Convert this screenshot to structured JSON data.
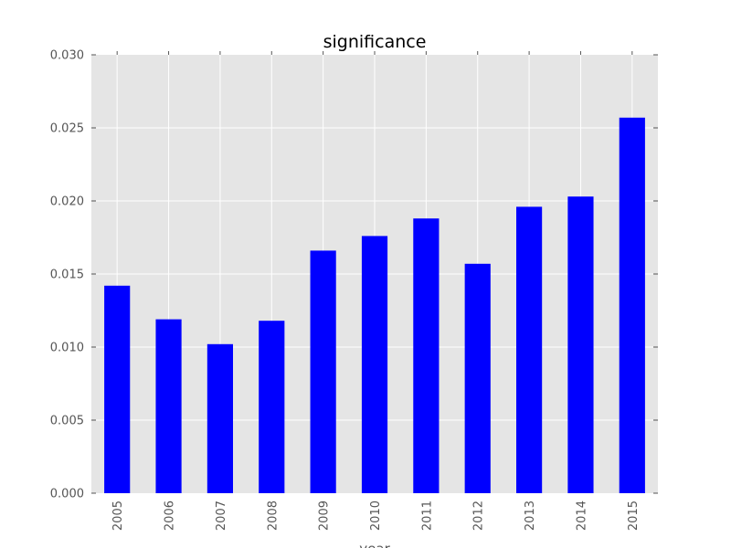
{
  "chart_data": {
    "type": "bar",
    "title": "significance",
    "xlabel": "year",
    "ylabel": "",
    "categories": [
      "2005",
      "2006",
      "2007",
      "2008",
      "2009",
      "2010",
      "2011",
      "2012",
      "2013",
      "2014",
      "2015"
    ],
    "values": [
      0.0142,
      0.0119,
      0.0102,
      0.0118,
      0.0166,
      0.0176,
      0.0188,
      0.0157,
      0.0196,
      0.0203,
      0.0257
    ],
    "ylim": [
      0,
      0.03
    ],
    "yticks": [
      "0.000",
      "0.005",
      "0.010",
      "0.015",
      "0.020",
      "0.025",
      "0.030"
    ],
    "grid": true,
    "legend": "none",
    "colors": {
      "bar": "#0000ff",
      "plot_background": "#e5e5e5",
      "grid": "#ffffff",
      "tick_text": "#555555"
    }
  }
}
